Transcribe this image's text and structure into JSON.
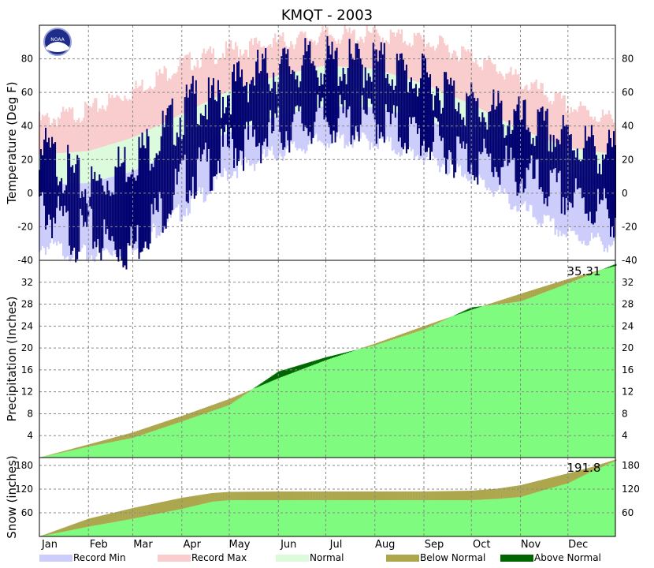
{
  "title": "KMQT - 2003",
  "colors": {
    "record_min": "#cdcdfb",
    "record_max": "#f9cdcd",
    "normal": "#dcfbdc",
    "observed": "#000070",
    "precip_fill": "#7ffb7f",
    "below_normal": "#aca64c",
    "above_normal": "#006400"
  },
  "months": [
    "Jan",
    "Feb",
    "Mar",
    "Apr",
    "May",
    "Jun",
    "Jul",
    "Aug",
    "Sep",
    "Oct",
    "Nov",
    "Dec"
  ],
  "legend": [
    {
      "label": "Record Min",
      "color": "#cdcdfb"
    },
    {
      "label": "Record Max",
      "color": "#f9cdcd"
    },
    {
      "label": "Normal",
      "color": "#dcfbdc"
    },
    {
      "label": "Below Normal",
      "color": "#aca64c"
    },
    {
      "label": "Above Normal",
      "color": "#006400"
    }
  ],
  "panels": {
    "temperature": {
      "ylabel": "Temperature (Deg F)",
      "ylim": [
        -40,
        100
      ],
      "ticks": [
        -40,
        -20,
        0,
        20,
        40,
        60,
        80
      ]
    },
    "precipitation": {
      "ylabel": "Precipitation (Inches)",
      "ylim": [
        0,
        36
      ],
      "ticks": [
        4,
        8,
        12,
        16,
        20,
        24,
        28,
        32
      ],
      "total_label": "35.31"
    },
    "snow": {
      "ylabel": "Snow (inches)",
      "ylim": [
        0,
        200
      ],
      "ticks": [
        60,
        120,
        180
      ],
      "total_label": "191.8"
    }
  },
  "chart_data": [
    {
      "type": "bar",
      "panel": "temperature",
      "title": "KMQT - 2003",
      "ylabel": "Temperature (Deg F)",
      "ylim": [
        -40,
        100
      ],
      "x_unit": "day of year",
      "grid": true,
      "series": [
        {
          "name": "Record Max",
          "x": [
            1,
            32,
            60,
            91,
            121,
            152,
            182,
            213,
            244,
            274,
            305,
            335,
            365
          ],
          "values": [
            46,
            52,
            64,
            80,
            88,
            93,
            97,
            97,
            94,
            85,
            70,
            55,
            46
          ]
        },
        {
          "name": "Normal",
          "x": [
            1,
            32,
            60,
            91,
            121,
            152,
            182,
            213,
            244,
            274,
            305,
            335,
            365
          ],
          "values": [
            [
              5,
              23
            ],
            [
              6,
              25
            ],
            [
              13,
              33
            ],
            [
              26,
              47
            ],
            [
              36,
              61
            ],
            [
              46,
              70
            ],
            [
              52,
              76
            ],
            [
              51,
              74
            ],
            [
              44,
              65
            ],
            [
              35,
              53
            ],
            [
              24,
              38
            ],
            [
              12,
              27
            ],
            [
              5,
              23
            ]
          ]
        },
        {
          "name": "Record Min",
          "x": [
            1,
            32,
            60,
            91,
            121,
            152,
            182,
            213,
            244,
            274,
            305,
            335,
            365
          ],
          "values": [
            -28,
            -34,
            -28,
            -8,
            16,
            27,
            35,
            34,
            25,
            14,
            -6,
            -22,
            -28
          ]
        },
        {
          "name": "Observed",
          "x": [
            1,
            15,
            25,
            32,
            45,
            60,
            70,
            80,
            91,
            100,
            110,
            121,
            135,
            152,
            170,
            182,
            200,
            213,
            230,
            244,
            258,
            274,
            290,
            305,
            320,
            335,
            350,
            365
          ],
          "values": [
            [
              0,
              35
            ],
            [
              -10,
              25
            ],
            [
              -18,
              15
            ],
            [
              -15,
              10
            ],
            [
              -22,
              18
            ],
            [
              -25,
              30
            ],
            [
              -10,
              35
            ],
            [
              0,
              45
            ],
            [
              15,
              55
            ],
            [
              20,
              65
            ],
            [
              25,
              60
            ],
            [
              35,
              70
            ],
            [
              38,
              78
            ],
            [
              45,
              82
            ],
            [
              50,
              85
            ],
            [
              52,
              86
            ],
            [
              50,
              84
            ],
            [
              52,
              86
            ],
            [
              45,
              80
            ],
            [
              40,
              75
            ],
            [
              35,
              70
            ],
            [
              28,
              60
            ],
            [
              25,
              55
            ],
            [
              18,
              50
            ],
            [
              12,
              45
            ],
            [
              5,
              40
            ],
            [
              0,
              35
            ],
            [
              -5,
              30
            ]
          ]
        }
      ]
    },
    {
      "type": "area",
      "panel": "precipitation",
      "ylabel": "Precipitation (Inches)",
      "ylim": [
        0,
        36
      ],
      "x_unit": "day of year",
      "grid": true,
      "total": 35.31,
      "series": [
        {
          "name": "Observed cumulative",
          "x": [
            1,
            32,
            60,
            91,
            121,
            152,
            182,
            213,
            244,
            274,
            305,
            335,
            365
          ],
          "values": [
            0,
            2.0,
            3.6,
            6.6,
            9.6,
            15.7,
            18.3,
            20.5,
            23.4,
            27.4,
            28.5,
            31.8,
            35.31
          ]
        },
        {
          "name": "Normal cumulative",
          "x": [
            1,
            32,
            60,
            91,
            121,
            152,
            182,
            213,
            244,
            274,
            305,
            335,
            365
          ],
          "values": [
            0,
            2.4,
            4.6,
            7.6,
            10.7,
            14.5,
            17.8,
            20.8,
            24.0,
            27.0,
            29.9,
            32.6,
            35.0
          ]
        }
      ]
    },
    {
      "type": "area",
      "panel": "snow",
      "ylabel": "Snow (inches)",
      "ylim": [
        0,
        200
      ],
      "x_unit": "day of year",
      "grid": true,
      "total": 191.8,
      "series": [
        {
          "name": "Observed cumulative",
          "x": [
            1,
            32,
            60,
            91,
            110,
            121,
            152,
            182,
            213,
            244,
            274,
            290,
            305,
            320,
            335,
            350,
            365
          ],
          "values": [
            0,
            25,
            45,
            70,
            88,
            92,
            92,
            92,
            92,
            92,
            92,
            95,
            100,
            118,
            135,
            165,
            191.8
          ]
        },
        {
          "name": "Normal cumulative",
          "x": [
            1,
            32,
            60,
            91,
            110,
            121,
            152,
            182,
            213,
            244,
            274,
            290,
            305,
            320,
            335,
            350,
            365
          ],
          "values": [
            0,
            45,
            72,
            98,
            110,
            113,
            114,
            114,
            114,
            114,
            116,
            121,
            130,
            145,
            160,
            176,
            195
          ]
        }
      ]
    }
  ]
}
